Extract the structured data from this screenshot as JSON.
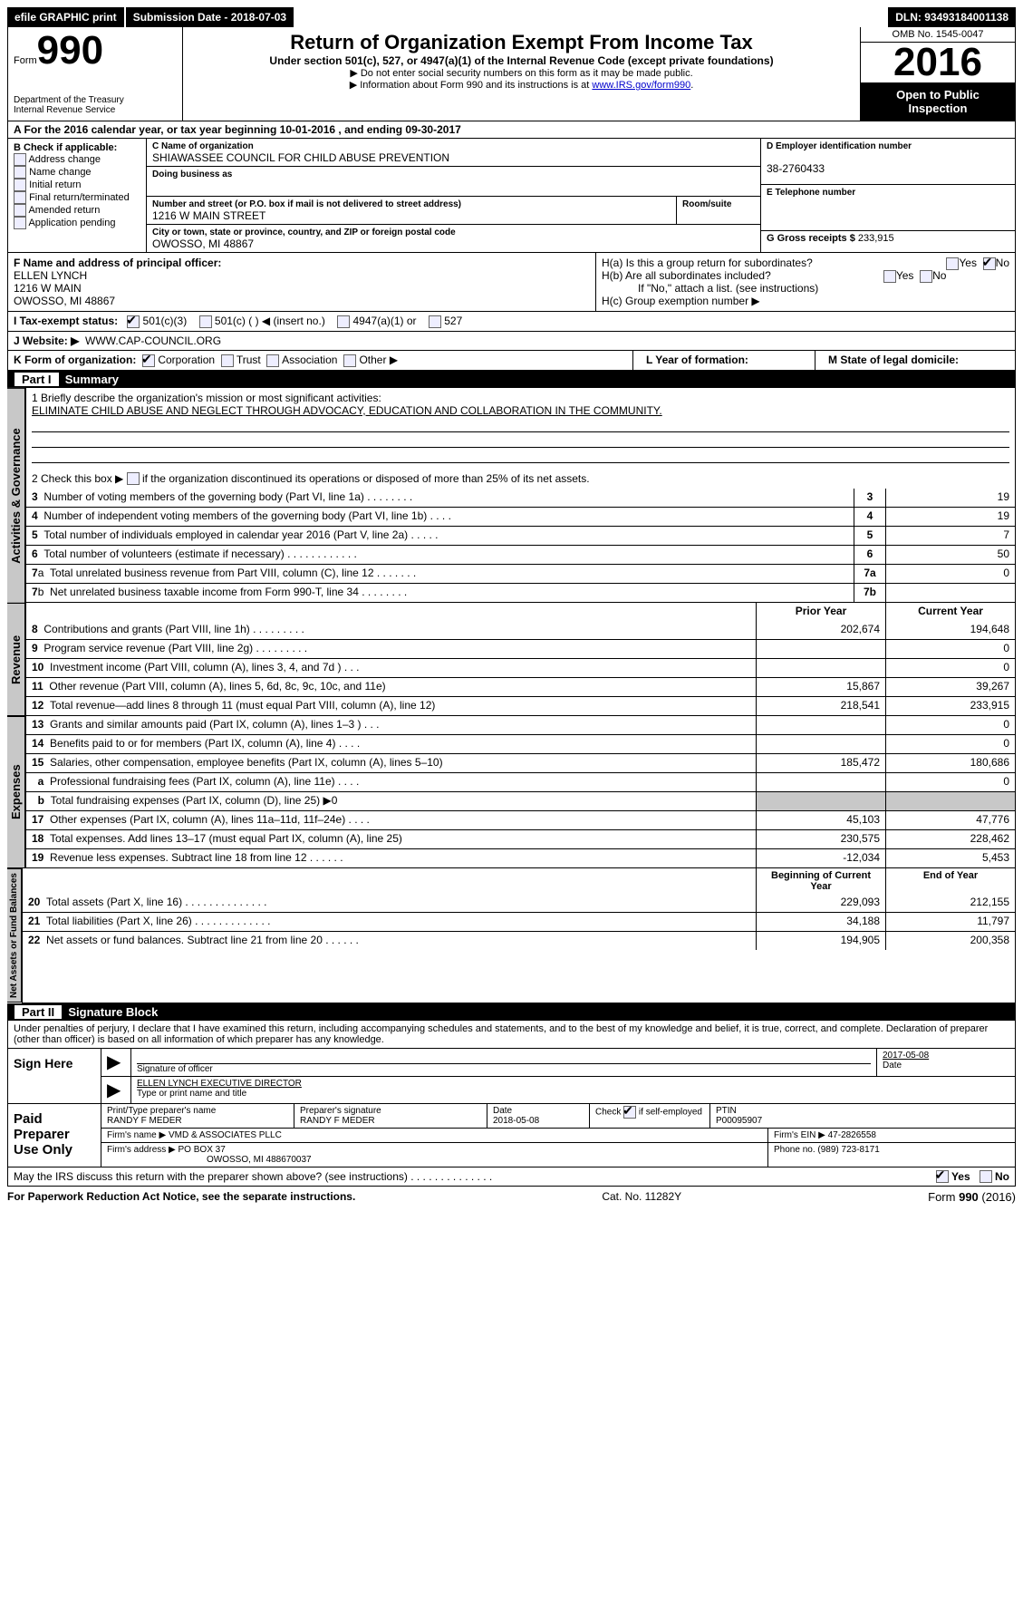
{
  "topbar": {
    "efile": "efile GRAPHIC print",
    "submission_label": "Submission Date",
    "submission_date": "2018-07-03",
    "dln_label": "DLN:",
    "dln": "93493184001138"
  },
  "header": {
    "form_label": "Form",
    "form_no": "990",
    "dept1": "Department of the Treasury",
    "dept2": "Internal Revenue Service",
    "title": "Return of Organization Exempt From Income Tax",
    "subtitle": "Under section 501(c), 527, or 4947(a)(1) of the Internal Revenue Code (except private foundations)",
    "note1": "▶ Do not enter social security numbers on this form as it may be made public.",
    "note2_a": "▶ Information about Form 990 and its instructions is at ",
    "note2_link": "www.IRS.gov/form990",
    "omb": "OMB No. 1545-0047",
    "year": "2016",
    "otp1": "Open to Public",
    "otp2": "Inspection"
  },
  "A": {
    "text_a": "A  For the 2016 calendar year, or tax year beginning ",
    "begin": "10-01-2016",
    "text_b": "  , and ending ",
    "end": "09-30-2017"
  },
  "B": {
    "label": "B Check if applicable:",
    "opts": [
      "Address change",
      "Name change",
      "Initial return",
      "Final return/terminated",
      "Amended return",
      "Application pending"
    ]
  },
  "C": {
    "name_label": "C Name of organization",
    "name": "SHIAWASSEE COUNCIL FOR CHILD ABUSE PREVENTION",
    "dba_label": "Doing business as",
    "dba": "",
    "addr_label": "Number and street (or P.O. box if mail is not delivered to street address)",
    "room_label": "Room/suite",
    "addr": "1216 W MAIN STREET",
    "city_label": "City or town, state or province, country, and ZIP or foreign postal code",
    "city": "OWOSSO, MI  48867"
  },
  "D": {
    "label": "D Employer identification number",
    "val": "38-2760433"
  },
  "E": {
    "label": "E Telephone number",
    "val": ""
  },
  "G": {
    "label": "G Gross receipts $",
    "val": "233,915"
  },
  "F": {
    "label": "F  Name and address of principal officer:",
    "name": "ELLEN LYNCH",
    "addr1": "1216 W MAIN",
    "addr2": "OWOSSO, MI  48867"
  },
  "H": {
    "a": "H(a)  Is this a group return for subordinates?",
    "b": "H(b)  Are all subordinates included?",
    "b_note": "If \"No,\" attach a list. (see instructions)",
    "c": "H(c)  Group exemption number ▶",
    "yes": "Yes",
    "no": "No"
  },
  "I": {
    "label": "I  Tax-exempt status:",
    "o1": "501(c)(3)",
    "o2": "501(c) (   ) ◀ (insert no.)",
    "o3": "4947(a)(1) or",
    "o4": "527"
  },
  "J": {
    "label": "J  Website: ▶",
    "val": "WWW.CAP-COUNCIL.ORG"
  },
  "K": {
    "label": "K Form of organization:",
    "o1": "Corporation",
    "o2": "Trust",
    "o3": "Association",
    "o4": "Other ▶"
  },
  "L": {
    "label": "L Year of formation:",
    "val": ""
  },
  "M": {
    "label": "M State of legal domicile:",
    "val": ""
  },
  "part1": {
    "name": "Part I",
    "title": "Summary"
  },
  "p1": {
    "l1a": "1  Briefly describe the organization's mission or most significant activities:",
    "l1b": "ELIMINATE CHILD ABUSE AND NEGLECT THROUGH ADVOCACY, EDUCATION AND COLLABORATION IN THE COMMUNITY.",
    "l2": "2  Check this box ▶",
    "l2b": " if the organization discontinued its operations or disposed of more than 25% of its net assets.",
    "prior_hdr": "Prior Year",
    "curr_hdr": "Current Year",
    "begin_hdr": "Beginning of Current Year",
    "end_hdr": "End of Year"
  },
  "govlines": [
    {
      "n": "3",
      "d": "Number of voting members of the governing body (Part VI, line 1a)   .    .    .    .    .    .    .    .",
      "v": "19"
    },
    {
      "n": "4",
      "d": "Number of independent voting members of the governing body (Part VI, line 1b)    .    .    .    .",
      "v": "19"
    },
    {
      "n": "5",
      "d": "Total number of individuals employed in calendar year 2016 (Part V, line 2a)   .    .    .    .    .",
      "v": "7"
    },
    {
      "n": "6",
      "d": "Total number of volunteers (estimate if necessary)   .    .    .    .    .    .    .    .    .    .    .    .",
      "v": "50"
    },
    {
      "n": "7a",
      "d": "Total unrelated business revenue from Part VIII, column (C), line 12   .    .    .    .    .    .    .",
      "v": "0"
    },
    {
      "n": "7b",
      "d": "Net unrelated business taxable income from Form 990-T, line 34   .    .    .    .    .    .    .    .",
      "v": ""
    }
  ],
  "revlines": [
    {
      "n": "8",
      "d": "Contributions and grants (Part VIII, line 1h)   .    .    .    .    .    .    .    .    .",
      "p": "202,674",
      "c": "194,648"
    },
    {
      "n": "9",
      "d": "Program service revenue (Part VIII, line 2g)   .    .    .    .    .    .    .    .    .",
      "p": "",
      "c": "0"
    },
    {
      "n": "10",
      "d": "Investment income (Part VIII, column (A), lines 3, 4, and 7d )   .    .    .",
      "p": "",
      "c": "0"
    },
    {
      "n": "11",
      "d": "Other revenue (Part VIII, column (A), lines 5, 6d, 8c, 9c, 10c, and 11e)",
      "p": "15,867",
      "c": "39,267"
    },
    {
      "n": "12",
      "d": "Total revenue—add lines 8 through 11 (must equal Part VIII, column (A), line 12)",
      "p": "218,541",
      "c": "233,915"
    }
  ],
  "explines": [
    {
      "n": "13",
      "d": "Grants and similar amounts paid (Part IX, column (A), lines 1–3 )   .    .    .",
      "p": "",
      "c": "0"
    },
    {
      "n": "14",
      "d": "Benefits paid to or for members (Part IX, column (A), line 4)   .    .    .    .",
      "p": "",
      "c": "0"
    },
    {
      "n": "15",
      "d": "Salaries, other compensation, employee benefits (Part IX, column (A), lines 5–10)",
      "p": "185,472",
      "c": "180,686"
    },
    {
      "n": "16a",
      "d": "Professional fundraising fees (Part IX, column (A), line 11e)   .    .    .    .",
      "p": "",
      "c": "0"
    },
    {
      "n": "16b",
      "d": "Total fundraising expenses (Part IX, column (D), line 25) ▶0",
      "p": "SHADE",
      "c": "SHADE"
    },
    {
      "n": "17",
      "d": "Other expenses (Part IX, column (A), lines 11a–11d, 11f–24e)   .    .    .    .",
      "p": "45,103",
      "c": "47,776"
    },
    {
      "n": "18",
      "d": "Total expenses. Add lines 13–17 (must equal Part IX, column (A), line 25)",
      "p": "230,575",
      "c": "228,462"
    },
    {
      "n": "19",
      "d": "Revenue less expenses. Subtract line 18 from line 12   .    .    .    .    .    .",
      "p": "-12,034",
      "c": "5,453"
    }
  ],
  "nalines": [
    {
      "n": "20",
      "d": "Total assets (Part X, line 16)  .    .    .    .    .    .    .    .    .    .    .    .    .    .",
      "p": "229,093",
      "c": "212,155"
    },
    {
      "n": "21",
      "d": "Total liabilities (Part X, line 26)  .    .    .    .    .    .    .    .    .    .    .    .    .",
      "p": "34,188",
      "c": "11,797"
    },
    {
      "n": "22",
      "d": "Net assets or fund balances. Subtract line 21 from line 20 .    .    .    .    .    .",
      "p": "194,905",
      "c": "200,358"
    }
  ],
  "sidelabels": {
    "gov": "Activities & Governance",
    "rev": "Revenue",
    "exp": "Expenses",
    "na": "Net Assets or Fund Balances"
  },
  "part2": {
    "name": "Part II",
    "title": "Signature Block"
  },
  "p2text": "Under penalties of perjury, I declare that I have examined this return, including accompanying schedules and statements, and to the best of my knowledge and belief, it is true, correct, and complete. Declaration of preparer (other than officer) is based on all information of which preparer has any knowledge.",
  "sign": {
    "here": "Sign Here",
    "sig_label": "Signature of officer",
    "date": "2017-05-08",
    "date_label": "Date",
    "name": "ELLEN LYNCH EXECUTIVE DIRECTOR",
    "name_label": "Type or print name and title"
  },
  "paid": {
    "label": "Paid Preparer Use Only",
    "pname_l": "Print/Type preparer's name",
    "pname": "RANDY F MEDER",
    "psig_l": "Preparer's signature",
    "psig": "RANDY F MEDER",
    "pdate_l": "Date",
    "pdate": "2018-05-08",
    "self_l": "Check",
    "self_l2": "if self-employed",
    "ptin_l": "PTIN",
    "ptin": "P00095907",
    "fname_l": "Firm's name    ▶",
    "fname": "VMD & ASSOCIATES PLLC",
    "fein_l": "Firm's EIN ▶",
    "fein": "47-2826558",
    "faddr_l": "Firm's address ▶",
    "faddr1": "PO BOX 37",
    "faddr2": "OWOSSO, MI  488670037",
    "phone_l": "Phone no.",
    "phone": "(989) 723-8171"
  },
  "discuss": {
    "q": "May the IRS discuss this return with the preparer shown above? (see instructions)   .    .    .    .    .    .    .    .    .    .    .    .    .    .",
    "yes": "Yes",
    "no": "No"
  },
  "footer": {
    "left": "For Paperwork Reduction Act Notice, see the separate instructions.",
    "mid": "Cat. No. 11282Y",
    "right": "Form 990 (2016)"
  }
}
